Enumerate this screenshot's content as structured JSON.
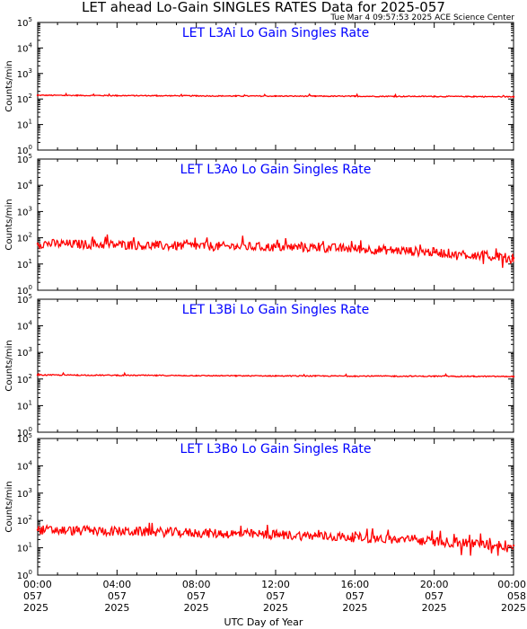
{
  "header": {
    "title": "LET ahead Lo-Gain SINGLES RATES Data for 2025-057",
    "timestamp": "Tue Mar  4 09:57:53 2025 ACE Science Center"
  },
  "colors": {
    "series": "#ff0000",
    "panel_title": "#0000ff"
  },
  "chart_data": [
    {
      "type": "line",
      "title": "LET L3Ai Lo Gain Singles Rate",
      "ylabel": "Counts/min",
      "yscale": "log",
      "ylim": [
        1,
        100000
      ],
      "x_hours": [
        0,
        2,
        4,
        6,
        8,
        10,
        12,
        14,
        16,
        18,
        20,
        22,
        24
      ],
      "values": [
        140,
        138,
        136,
        135,
        133,
        131,
        130,
        129,
        128,
        127,
        126,
        125,
        122
      ]
    },
    {
      "type": "line",
      "title": "LET L3Ao Lo Gain Singles Rate",
      "ylabel": "Counts/min",
      "yscale": "log",
      "ylim": [
        1,
        100000
      ],
      "x_hours": [
        0,
        2,
        4,
        6,
        8,
        10,
        12,
        14,
        16,
        18,
        20,
        22,
        24
      ],
      "values": [
        60,
        57,
        54,
        50,
        48,
        46,
        44,
        42,
        38,
        33,
        28,
        22,
        17
      ]
    },
    {
      "type": "line",
      "title": "LET L3Bi Lo Gain Singles Rate",
      "ylabel": "Counts/min",
      "yscale": "log",
      "ylim": [
        1,
        100000
      ],
      "x_hours": [
        0,
        2,
        4,
        6,
        8,
        10,
        12,
        14,
        16,
        18,
        20,
        22,
        24
      ],
      "values": [
        142,
        140,
        138,
        136,
        134,
        132,
        131,
        130,
        129,
        128,
        127,
        126,
        124
      ]
    },
    {
      "type": "line",
      "title": "LET L3Bo Lo Gain Singles Rate",
      "ylabel": "Counts/min",
      "yscale": "log",
      "ylim": [
        1,
        100000
      ],
      "x_hours": [
        0,
        2,
        4,
        6,
        8,
        10,
        12,
        14,
        16,
        18,
        20,
        22,
        24
      ],
      "values": [
        45,
        42,
        40,
        38,
        35,
        32,
        30,
        27,
        24,
        20,
        17,
        14,
        12
      ]
    }
  ],
  "x_axis": {
    "label": "UTC Day of Year",
    "ticks": [
      {
        "hour": 0,
        "time": "00:00",
        "doy": "057",
        "year": "2025"
      },
      {
        "hour": 4,
        "time": "04:00",
        "doy": "057",
        "year": "2025"
      },
      {
        "hour": 8,
        "time": "08:00",
        "doy": "057",
        "year": "2025"
      },
      {
        "hour": 12,
        "time": "12:00",
        "doy": "057",
        "year": "2025"
      },
      {
        "hour": 16,
        "time": "16:00",
        "doy": "057",
        "year": "2025"
      },
      {
        "hour": 20,
        "time": "20:00",
        "doy": "057",
        "year": "2025"
      },
      {
        "hour": 24,
        "time": "00:00",
        "doy": "058",
        "year": "2025"
      }
    ]
  },
  "y_axis": {
    "tick_base": "10",
    "tick_exponents": [
      "0",
      "1",
      "2",
      "3",
      "4",
      "5"
    ]
  }
}
